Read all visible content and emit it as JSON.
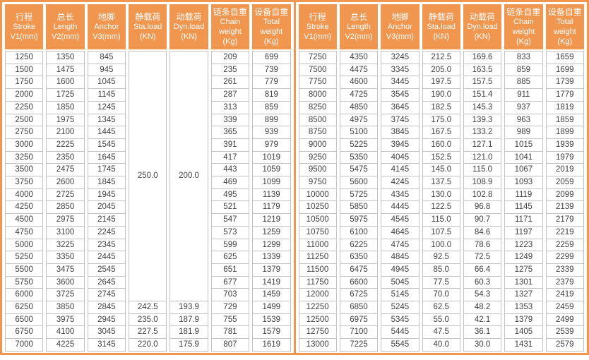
{
  "colors": {
    "accent_orange": "#F0964F",
    "grid_gray": "#C2C2C2",
    "header_text": "#FFFFFF",
    "cell_text": "#404040"
  },
  "columns": [
    {
      "key": "stroke",
      "lines": [
        "行程",
        "Stroke",
        "V1(mm)"
      ]
    },
    {
      "key": "length",
      "lines": [
        "总长",
        "Length",
        "V2(mm)"
      ]
    },
    {
      "key": "anchor",
      "lines": [
        "地脚",
        "Anchor",
        "V3(mm)"
      ]
    },
    {
      "key": "sta_load",
      "lines": [
        "静载荷",
        "Sta.load",
        "(KN)"
      ]
    },
    {
      "key": "dyn_load",
      "lines": [
        "动载荷",
        "Dyn.load",
        "(KN)"
      ]
    },
    {
      "key": "chain_weight",
      "lines": [
        "链条自重",
        "Chain",
        "weight",
        "(Kg)"
      ]
    },
    {
      "key": "total_weight",
      "lines": [
        "设备自重",
        "Total",
        "weight",
        "(Kg)"
      ]
    }
  ],
  "left_table": {
    "merged": {
      "sta_load": "250.0",
      "dyn_load": "200.0",
      "row_span": 20
    },
    "rows": [
      [
        "1250",
        "1350",
        "845",
        null,
        null,
        "209",
        "699"
      ],
      [
        "1500",
        "1475",
        "945",
        null,
        null,
        "235",
        "739"
      ],
      [
        "1750",
        "1600",
        "1045",
        null,
        null,
        "261",
        "779"
      ],
      [
        "2000",
        "1725",
        "1145",
        null,
        null,
        "287",
        "819"
      ],
      [
        "2250",
        "1850",
        "1245",
        null,
        null,
        "313",
        "859"
      ],
      [
        "2500",
        "1975",
        "1345",
        null,
        null,
        "339",
        "899"
      ],
      [
        "2750",
        "2100",
        "1445",
        null,
        null,
        "365",
        "939"
      ],
      [
        "3000",
        "2225",
        "1545",
        null,
        null,
        "391",
        "979"
      ],
      [
        "3250",
        "2350",
        "1645",
        null,
        null,
        "417",
        "1019"
      ],
      [
        "3500",
        "2475",
        "1745",
        null,
        null,
        "443",
        "1059"
      ],
      [
        "3750",
        "2600",
        "1845",
        null,
        null,
        "469",
        "1099"
      ],
      [
        "4000",
        "2725",
        "1945",
        null,
        null,
        "495",
        "1139"
      ],
      [
        "4250",
        "2850",
        "2045",
        null,
        null,
        "521",
        "1179"
      ],
      [
        "4500",
        "2975",
        "2145",
        null,
        null,
        "547",
        "1219"
      ],
      [
        "4750",
        "3100",
        "2245",
        null,
        null,
        "573",
        "1259"
      ],
      [
        "5000",
        "3225",
        "2345",
        null,
        null,
        "599",
        "1299"
      ],
      [
        "5250",
        "3350",
        "2445",
        null,
        null,
        "625",
        "1339"
      ],
      [
        "5500",
        "3475",
        "2545",
        null,
        null,
        "651",
        "1379"
      ],
      [
        "5750",
        "3600",
        "2645",
        null,
        null,
        "677",
        "1419"
      ],
      [
        "6000",
        "3725",
        "2745",
        null,
        null,
        "703",
        "1459"
      ],
      [
        "6250",
        "3850",
        "2845",
        "242.5",
        "193.9",
        "729",
        "1499"
      ],
      [
        "6500",
        "3975",
        "2945",
        "235.0",
        "187.9",
        "755",
        "1539"
      ],
      [
        "6750",
        "4100",
        "3045",
        "227.5",
        "181.9",
        "781",
        "1579"
      ],
      [
        "7000",
        "4225",
        "3145",
        "220.0",
        "175.9",
        "807",
        "1619"
      ]
    ]
  },
  "right_table": {
    "rows": [
      [
        "7250",
        "4350",
        "3245",
        "212.5",
        "169.6",
        "833",
        "1659"
      ],
      [
        "7500",
        "4475",
        "3345",
        "205.0",
        "163.5",
        "859",
        "1699"
      ],
      [
        "7750",
        "4600",
        "3445",
        "197.5",
        "157.5",
        "885",
        "1739"
      ],
      [
        "8000",
        "4725",
        "3545",
        "190.0",
        "151.4",
        "911",
        "1779"
      ],
      [
        "8250",
        "4850",
        "3645",
        "182.5",
        "145.3",
        "937",
        "1819"
      ],
      [
        "8500",
        "4975",
        "3745",
        "175.0",
        "139.3",
        "963",
        "1859"
      ],
      [
        "8750",
        "5100",
        "3845",
        "167.5",
        "133.2",
        "989",
        "1899"
      ],
      [
        "9000",
        "5225",
        "3945",
        "160.0",
        "127.1",
        "1015",
        "1939"
      ],
      [
        "9250",
        "5350",
        "4045",
        "152.5",
        "121.0",
        "1041",
        "1979"
      ],
      [
        "9500",
        "5475",
        "4145",
        "145.0",
        "115.0",
        "1067",
        "2019"
      ],
      [
        "9750",
        "5600",
        "4245",
        "137.5",
        "108.9",
        "1093",
        "2059"
      ],
      [
        "10000",
        "5725",
        "4345",
        "130.0",
        "102.8",
        "1119",
        "2099"
      ],
      [
        "10250",
        "5850",
        "4445",
        "122.5",
        "96.8",
        "1145",
        "2139"
      ],
      [
        "10500",
        "5975",
        "4545",
        "115.0",
        "90.7",
        "1171",
        "2179"
      ],
      [
        "10750",
        "6100",
        "4645",
        "107.5",
        "84.6",
        "1197",
        "2219"
      ],
      [
        "11000",
        "6225",
        "4745",
        "100.0",
        "78.6",
        "1223",
        "2259"
      ],
      [
        "11250",
        "6350",
        "4845",
        "92.5",
        "72.5",
        "1249",
        "2299"
      ],
      [
        "11500",
        "6475",
        "4945",
        "85.0",
        "66.4",
        "1275",
        "2339"
      ],
      [
        "11750",
        "6600",
        "5045",
        "77.5",
        "60.3",
        "1301",
        "2379"
      ],
      [
        "12000",
        "6725",
        "5145",
        "70.0",
        "54.3",
        "1327",
        "2419"
      ],
      [
        "12250",
        "6850",
        "5245",
        "62.5",
        "48.2",
        "1353",
        "2459"
      ],
      [
        "12500",
        "6975",
        "5345",
        "55.0",
        "42.1",
        "1379",
        "2499"
      ],
      [
        "12750",
        "7100",
        "5445",
        "47.5",
        "36.1",
        "1405",
        "2539"
      ],
      [
        "13000",
        "7225",
        "5545",
        "40.0",
        "30.0",
        "1431",
        "2579"
      ]
    ]
  }
}
